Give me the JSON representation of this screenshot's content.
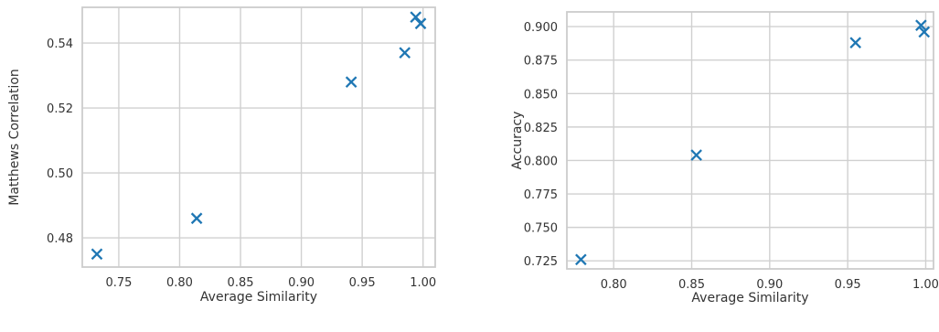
{
  "chart_data": [
    {
      "type": "scatter",
      "title": "",
      "xlabel": "Average Similarity",
      "ylabel": "Matthews Correlation",
      "xlim": [
        0.72,
        1.01
      ],
      "ylim": [
        0.471,
        0.551
      ],
      "xticks": [
        0.75,
        0.8,
        0.85,
        0.9,
        0.95,
        1.0
      ],
      "xtick_labels": [
        "0.75",
        "0.80",
        "0.85",
        "0.90",
        "0.95",
        "1.00"
      ],
      "yticks": [
        0.48,
        0.5,
        0.52,
        0.54
      ],
      "ytick_labels": [
        "0.48",
        "0.50",
        "0.52",
        "0.54"
      ],
      "grid": true,
      "marker": "x",
      "color": "#1f77b4",
      "points": [
        {
          "x": 0.732,
          "y": 0.475
        },
        {
          "x": 0.814,
          "y": 0.486
        },
        {
          "x": 0.941,
          "y": 0.528
        },
        {
          "x": 0.985,
          "y": 0.537
        },
        {
          "x": 0.994,
          "y": 0.548
        },
        {
          "x": 0.998,
          "y": 0.546
        }
      ]
    },
    {
      "type": "scatter",
      "title": "",
      "xlabel": "Average Similarity",
      "ylabel": "Accuracy",
      "xlim": [
        0.77,
        1.005
      ],
      "ylim": [
        0.719,
        0.911
      ],
      "xticks": [
        0.8,
        0.85,
        0.9,
        0.95,
        1.0
      ],
      "xtick_labels": [
        "0.80",
        "0.85",
        "0.90",
        "0.95",
        "1.00"
      ],
      "yticks": [
        0.725,
        0.75,
        0.775,
        0.8,
        0.825,
        0.85,
        0.875,
        0.9
      ],
      "ytick_labels": [
        "0.725",
        "0.750",
        "0.775",
        "0.800",
        "0.825",
        "0.850",
        "0.875",
        "0.900"
      ],
      "grid": true,
      "marker": "x",
      "color": "#1f77b4",
      "points": [
        {
          "x": 0.779,
          "y": 0.726
        },
        {
          "x": 0.853,
          "y": 0.804
        },
        {
          "x": 0.955,
          "y": 0.888
        },
        {
          "x": 0.997,
          "y": 0.901
        },
        {
          "x": 0.999,
          "y": 0.896
        }
      ]
    }
  ]
}
